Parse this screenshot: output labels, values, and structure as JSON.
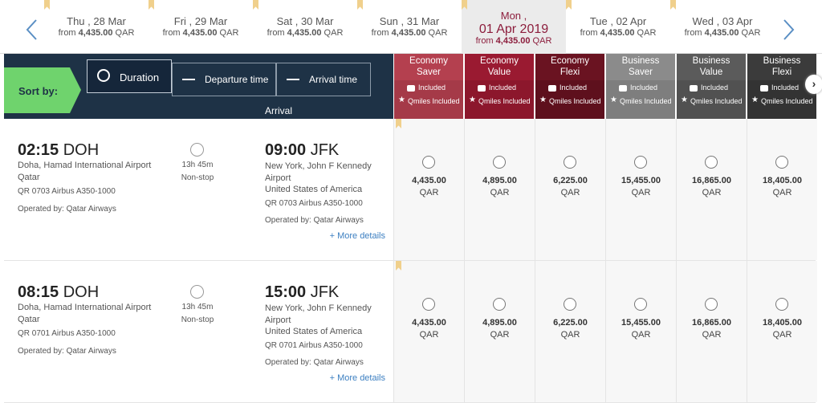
{
  "dates": [
    {
      "day": "Thu , 28 Mar",
      "from": "from",
      "price": "4,435.00",
      "currency": "QAR"
    },
    {
      "day": "Fri , 29 Mar",
      "from": "from",
      "price": "4,435.00",
      "currency": "QAR"
    },
    {
      "day": "Sat , 30 Mar",
      "from": "from",
      "price": "4,435.00",
      "currency": "QAR"
    },
    {
      "day": "Sun , 31 Mar",
      "from": "from",
      "price": "4,435.00",
      "currency": "QAR"
    },
    {
      "weekday": "Mon ,",
      "day": "01 Apr 2019",
      "from": "from",
      "price": "4,435.00",
      "currency": "QAR",
      "selected": true
    },
    {
      "day": "Tue , 02 Apr",
      "from": "from",
      "price": "4,435.00",
      "currency": "QAR"
    },
    {
      "day": "Wed , 03 Apr",
      "from": "from",
      "price": "4,435.00",
      "currency": "QAR"
    }
  ],
  "sort": {
    "label": "Sort by:",
    "options": [
      "Duration",
      "Departure time",
      "Arrival time"
    ]
  },
  "arrival_header": "Arrival",
  "fares": [
    {
      "line1": "Economy",
      "line2": "Saver",
      "baggage": "Included",
      "qmiles": "Qmiles Included",
      "color": "#b4404f",
      "sub": "#a53a48"
    },
    {
      "line1": "Economy",
      "line2": "Value",
      "baggage": "Included",
      "qmiles": "Qmiles Included",
      "color": "#9a1a31",
      "sub": "#8c172c"
    },
    {
      "line1": "Economy",
      "line2": "Flexi",
      "baggage": "Included",
      "qmiles": "Qmiles Included",
      "color": "#6a1321",
      "sub": "#5e101d"
    },
    {
      "line1": "Business",
      "line2": "Saver",
      "baggage": "Included",
      "qmiles": "Qmiles Included",
      "color": "#8b8b8b",
      "sub": "#7e7e7e"
    },
    {
      "line1": "Business",
      "line2": "Value",
      "baggage": "Included",
      "qmiles": "Qmiles Included",
      "color": "#5b5b5b",
      "sub": "#515151"
    },
    {
      "line1": "Business",
      "line2": "Flexi",
      "baggage": "Included",
      "qmiles": "Qmiles Included",
      "color": "#3b3b3b",
      "sub": "#333333"
    }
  ],
  "flights": [
    {
      "dep_time": "02:15",
      "dep_code": "DOH",
      "dep_airport": "Doha, Hamad International Airport",
      "dep_country": "Qatar",
      "dep_flight": "QR 0703 Airbus A350-1000",
      "dep_operated": "Operated by: Qatar Airways",
      "duration": "13h 45m",
      "stops": "Non-stop",
      "arr_time": "09:00",
      "arr_code": "JFK",
      "arr_airport": "New York, John F Kennedy Airport",
      "arr_country": "United States of America",
      "arr_flight": "QR 0703 Airbus A350-1000",
      "arr_operated": "Operated by: Qatar Airways",
      "more": "+ More details",
      "prices": [
        {
          "amount": "4,435.00",
          "currency": "QAR"
        },
        {
          "amount": "4,895.00",
          "currency": "QAR"
        },
        {
          "amount": "6,225.00",
          "currency": "QAR"
        },
        {
          "amount": "15,455.00",
          "currency": "QAR"
        },
        {
          "amount": "16,865.00",
          "currency": "QAR"
        },
        {
          "amount": "18,405.00",
          "currency": "QAR"
        }
      ]
    },
    {
      "dep_time": "08:15",
      "dep_code": "DOH",
      "dep_airport": "Doha, Hamad International Airport",
      "dep_country": "Qatar",
      "dep_flight": "QR 0701 Airbus A350-1000",
      "dep_operated": "Operated by: Qatar Airways",
      "duration": "13h 45m",
      "stops": "Non-stop",
      "arr_time": "15:00",
      "arr_code": "JFK",
      "arr_airport": "New York, John F Kennedy Airport",
      "arr_country": "United States of America",
      "arr_flight": "QR 0701 Airbus A350-1000",
      "arr_operated": "Operated by: Qatar Airways",
      "more": "+ More details",
      "prices": [
        {
          "amount": "4,435.00",
          "currency": "QAR"
        },
        {
          "amount": "4,895.00",
          "currency": "QAR"
        },
        {
          "amount": "6,225.00",
          "currency": "QAR"
        },
        {
          "amount": "15,455.00",
          "currency": "QAR"
        },
        {
          "amount": "16,865.00",
          "currency": "QAR"
        },
        {
          "amount": "18,405.00",
          "currency": "QAR"
        }
      ]
    }
  ]
}
